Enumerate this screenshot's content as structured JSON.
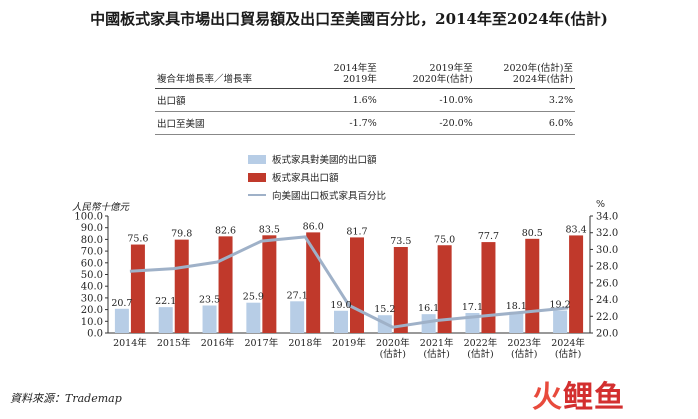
{
  "title": "中國板式家具市場出口貿易額及出口至美國百分比，2014年至2024年(估計)",
  "cagr_table": {
    "header": [
      "複合年增長率／增長率",
      "2014年至\n2019年",
      "2019年至\n2020年(估計)",
      "2020年(估計)至\n2024年(估計)"
    ],
    "rows": [
      {
        "label": "出口額",
        "values": [
          "1.6%",
          "-10.0%",
          "3.2%"
        ]
      },
      {
        "label": "出口至美國",
        "values": [
          "-1.7%",
          "-20.0%",
          "6.0%"
        ]
      }
    ]
  },
  "source": "資料來源：Trademap",
  "logo": {
    "part1": "火",
    "part2": "鲤鱼"
  },
  "colors": {
    "us_bar": "#b7cde6",
    "total_bar": "#c0392b",
    "line": "#9fb1c8"
  },
  "chart_data": {
    "type": "bar",
    "categories": [
      [
        "2014年"
      ],
      [
        "2015年"
      ],
      [
        "2016年"
      ],
      [
        "2017年"
      ],
      [
        "2018年"
      ],
      [
        "2019年"
      ],
      [
        "2020年",
        "(估計)"
      ],
      [
        "2021年",
        "(估計)"
      ],
      [
        "2022年",
        "(估計)"
      ],
      [
        "2023年",
        "(估計)"
      ],
      [
        "2024年",
        "(估計)"
      ]
    ],
    "series": [
      {
        "name": "板式家具對美國的出口額",
        "kind": "bar",
        "axis": "left",
        "values": [
          20.7,
          22.1,
          23.5,
          25.9,
          27.1,
          19.0,
          15.2,
          16.1,
          17.1,
          18.1,
          19.2
        ],
        "labels": [
          "20.7",
          "22.1",
          "23.5",
          "25.9",
          "27.1",
          "19.0",
          "15.2",
          "16.1",
          "17.1",
          "18.1",
          "19.2"
        ]
      },
      {
        "name": "板式家具出口額",
        "kind": "bar",
        "axis": "left",
        "values": [
          75.6,
          79.8,
          82.6,
          83.5,
          86.0,
          81.7,
          73.5,
          75.0,
          77.7,
          80.5,
          83.4
        ],
        "labels": [
          "75.6",
          "79.8",
          "82.6",
          "83.5",
          "86.0",
          "81.7",
          "73.5",
          "75.0",
          "77.7",
          "80.5",
          "83.4"
        ]
      },
      {
        "name": "向美國出口板式家具百分比",
        "kind": "line",
        "axis": "right",
        "values": [
          27.4,
          27.7,
          28.5,
          31.0,
          31.5,
          23.3,
          20.7,
          21.5,
          22.0,
          22.5,
          23.0
        ]
      }
    ],
    "ylabel_left": "人民幣十億元",
    "ylabel_right": "%",
    "ylim_left": [
      0,
      100
    ],
    "ylim_right": [
      20,
      34
    ],
    "yticks_left": [
      "0.0",
      "10.0",
      "20.0",
      "30.0",
      "40.0",
      "50.0",
      "60.0",
      "70.0",
      "80.0",
      "90.0",
      "100.0"
    ],
    "yticks_right": [
      "20.0",
      "22.0",
      "24.0",
      "26.0",
      "28.0",
      "30.0",
      "32.0",
      "34.0"
    ],
    "legend_placement": "top-center",
    "grid": false
  }
}
